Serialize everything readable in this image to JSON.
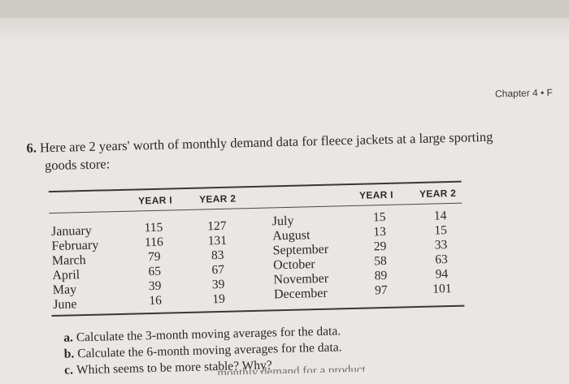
{
  "running_head": "Chapter 4  •  F",
  "problem": {
    "number": "6.",
    "line1": "Here are 2 years' worth of monthly demand data for fleece jackets at a large sporting",
    "line2": "goods store:"
  },
  "table": {
    "left_header": {
      "year1": "YEAR I",
      "year2": "YEAR 2"
    },
    "right_header": {
      "year1": "YEAR I",
      "year2": "YEAR 2"
    },
    "left_rows": [
      {
        "month": "January",
        "year1": "115",
        "year2": "127"
      },
      {
        "month": "February",
        "year1": "116",
        "year2": "131"
      },
      {
        "month": "March",
        "year1": "79",
        "year2": "83"
      },
      {
        "month": "April",
        "year1": "65",
        "year2": "67"
      },
      {
        "month": "May",
        "year1": "39",
        "year2": "39"
      },
      {
        "month": "June",
        "year1": "16",
        "year2": "19"
      }
    ],
    "right_rows": [
      {
        "month": "July",
        "year1": "15",
        "year2": "14"
      },
      {
        "month": "August",
        "year1": "13",
        "year2": "15"
      },
      {
        "month": "September",
        "year1": "29",
        "year2": "33"
      },
      {
        "month": "October",
        "year1": "58",
        "year2": "63"
      },
      {
        "month": "November",
        "year1": "89",
        "year2": "94"
      },
      {
        "month": "December",
        "year1": "97",
        "year2": "101"
      }
    ]
  },
  "questions": [
    {
      "label": "a.",
      "text": "Calculate the 3-month moving averages for the data."
    },
    {
      "label": "b.",
      "text": "Calculate the 6-month moving averages for the data."
    },
    {
      "label": "c.",
      "text": "Which seems to be more stable? Why?"
    }
  ],
  "cut_off_text": "monthly demand for a product"
}
